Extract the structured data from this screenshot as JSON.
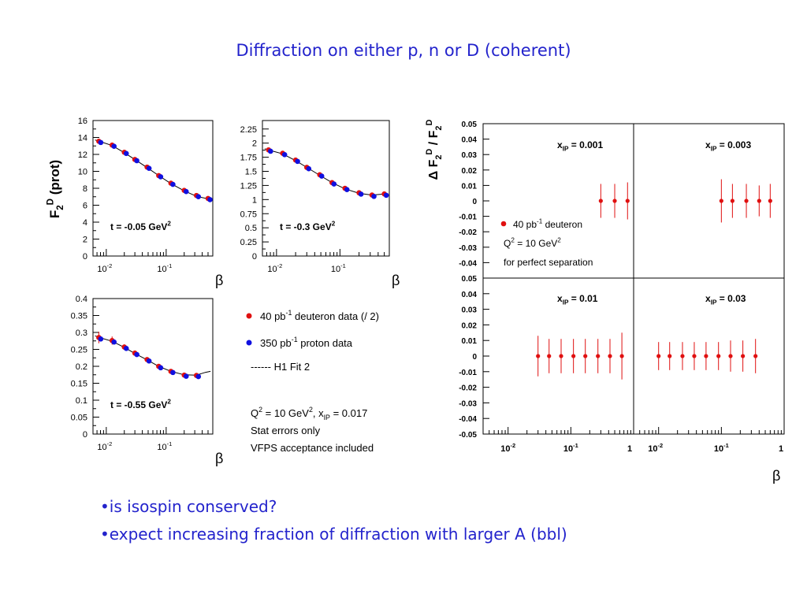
{
  "slide": {
    "title": "Diffraction on either p, n or D (coherent)",
    "bullets": [
      "•is isospin conserved?",
      "•expect increasing fraction of diffraction with larger A (bbl)"
    ]
  },
  "legend": {
    "deuteron": "40 pb-1 deuteron data (/ 2)",
    "proton": "350 pb-1 proton data",
    "fit": "------ H1 Fit 2",
    "conditions": "Q2 = 10 GeV2, xIP = 0.017",
    "stat": "Stat errors only",
    "vfps": "VFPS acceptance included"
  },
  "colors": {
    "text": "#2323cc",
    "deuteron": "#e01010",
    "proton": "#1010e0",
    "fit": "#000000"
  },
  "chart_data": [
    {
      "type": "scatter",
      "panel": "top-left",
      "ylabel": "F2D (prot)",
      "xlabel": "β",
      "xscale": "log",
      "annotation": "t = -0.05 GeV2",
      "ylim": [
        0,
        16
      ],
      "yticks": [
        0,
        2,
        4,
        6,
        8,
        10,
        12,
        14,
        16
      ],
      "x": [
        0.0075,
        0.0125,
        0.02,
        0.03,
        0.048,
        0.075,
        0.12,
        0.2,
        0.32,
        0.5
      ],
      "series": [
        {
          "name": "40 pb-1 deuteron data (/ 2)",
          "values": [
            13.55,
            13.1,
            12.25,
            11.4,
            10.5,
            9.5,
            8.6,
            7.75,
            7.15,
            6.8
          ]
        },
        {
          "name": "350 pb-1 proton data",
          "values": [
            13.5,
            13.05,
            12.2,
            11.35,
            10.45,
            9.45,
            8.55,
            7.7,
            7.1,
            6.75
          ]
        },
        {
          "name": "H1 Fit 2",
          "line": [
            [
              0.0065,
              13.7
            ],
            [
              0.008,
              13.5
            ],
            [
              0.0125,
              13.05
            ],
            [
              0.02,
              12.2
            ],
            [
              0.03,
              11.4
            ],
            [
              0.048,
              10.45
            ],
            [
              0.075,
              9.5
            ],
            [
              0.12,
              8.55
            ],
            [
              0.2,
              7.7
            ],
            [
              0.32,
              7.05
            ],
            [
              0.5,
              6.75
            ],
            [
              0.55,
              6.7
            ]
          ]
        }
      ]
    },
    {
      "type": "scatter",
      "panel": "top-right",
      "xlabel": "β",
      "xscale": "log",
      "annotation": "t = -0.3 GeV2",
      "ylim": [
        0,
        2.4
      ],
      "yticks": [
        0,
        0.25,
        0.5,
        0.75,
        1,
        1.25,
        1.5,
        1.75,
        2,
        2.25
      ],
      "x": [
        0.0075,
        0.0125,
        0.02,
        0.03,
        0.048,
        0.075,
        0.12,
        0.2,
        0.32,
        0.5
      ],
      "series": [
        {
          "name": "40 pb-1 deuteron data (/ 2)",
          "values": [
            1.88,
            1.82,
            1.7,
            1.57,
            1.44,
            1.3,
            1.2,
            1.12,
            1.08,
            1.1
          ]
        },
        {
          "name": "350 pb-1 proton data",
          "values": [
            1.87,
            1.81,
            1.69,
            1.56,
            1.43,
            1.29,
            1.19,
            1.11,
            1.07,
            1.09
          ]
        },
        {
          "name": "H1 Fit 2",
          "line": [
            [
              0.0065,
              1.9
            ],
            [
              0.008,
              1.87
            ],
            [
              0.0125,
              1.81
            ],
            [
              0.02,
              1.69
            ],
            [
              0.03,
              1.57
            ],
            [
              0.048,
              1.43
            ],
            [
              0.075,
              1.3
            ],
            [
              0.12,
              1.19
            ],
            [
              0.2,
              1.11
            ],
            [
              0.32,
              1.08
            ],
            [
              0.5,
              1.1
            ],
            [
              0.55,
              1.11
            ]
          ]
        }
      ]
    },
    {
      "type": "scatter",
      "panel": "bottom-left",
      "xlabel": "β",
      "xscale": "log",
      "annotation": "t = -0.55 GeV2",
      "ylim": [
        0,
        0.4
      ],
      "yticks": [
        0,
        0.05,
        0.1,
        0.15,
        0.2,
        0.25,
        0.3,
        0.35,
        0.4
      ],
      "x": [
        0.0075,
        0.0125,
        0.02,
        0.03,
        0.048,
        0.075,
        0.12,
        0.2,
        0.32
      ],
      "series": [
        {
          "name": "40 pb-1 deuteron data (/ 2)",
          "values": [
            0.285,
            0.276,
            0.257,
            0.239,
            0.22,
            0.2,
            0.185,
            0.174,
            0.173
          ],
          "err": [
            0.017,
            0.012,
            0.008,
            0.007,
            0.006,
            0.006,
            0.005,
            0.005,
            0.005
          ]
        },
        {
          "name": "350 pb-1 proton data",
          "values": [
            0.283,
            0.274,
            0.255,
            0.237,
            0.218,
            0.198,
            0.184,
            0.173,
            0.172
          ]
        },
        {
          "name": "H1 Fit 2",
          "line": [
            [
              0.0065,
              0.29
            ],
            [
              0.008,
              0.284
            ],
            [
              0.0125,
              0.274
            ],
            [
              0.02,
              0.256
            ],
            [
              0.03,
              0.238
            ],
            [
              0.048,
              0.219
            ],
            [
              0.075,
              0.2
            ],
            [
              0.12,
              0.185
            ],
            [
              0.2,
              0.175
            ],
            [
              0.32,
              0.174
            ],
            [
              0.45,
              0.182
            ],
            [
              0.55,
              0.185
            ]
          ]
        }
      ]
    },
    {
      "type": "scatter",
      "panel": "ratio-grid",
      "ylabel": "Δ F2D / F2D",
      "xlabel": "β",
      "xscale": "log",
      "xticklabels": [
        "10-2",
        "10-1",
        "1"
      ],
      "ylim": [
        -0.05,
        0.05
      ],
      "yticks": [
        -0.05,
        -0.04,
        -0.03,
        -0.02,
        -0.01,
        0,
        0.01,
        0.02,
        0.03,
        0.04,
        0.05
      ],
      "legend": {
        "marker": "40 pb-1 deuteron",
        "q2": "Q2 = 10 GeV2",
        "note": "for perfect separation"
      },
      "subpanels": [
        {
          "label": "xIP = 0.001",
          "x": [
            0.3,
            0.5,
            0.8
          ],
          "values": [
            0,
            0,
            0
          ],
          "err": [
            0.011,
            0.011,
            0.012
          ]
        },
        {
          "label": "xIP = 0.003",
          "x": [
            0.1,
            0.15,
            0.25,
            0.4,
            0.6
          ],
          "values": [
            0,
            0,
            0,
            0,
            0
          ],
          "err": [
            0.014,
            0.011,
            0.011,
            0.01,
            0.011
          ]
        },
        {
          "label": "xIP = 0.01",
          "x": [
            0.03,
            0.045,
            0.07,
            0.11,
            0.17,
            0.27,
            0.42,
            0.65
          ],
          "values": [
            0,
            0,
            0,
            0,
            0,
            0,
            0,
            0
          ],
          "err": [
            0.013,
            0.011,
            0.011,
            0.011,
            0.011,
            0.011,
            0.011,
            0.015
          ]
        },
        {
          "label": "xIP = 0.03",
          "x": [
            0.01,
            0.015,
            0.024,
            0.037,
            0.057,
            0.09,
            0.14,
            0.22,
            0.35
          ],
          "values": [
            0,
            0,
            0,
            0,
            0,
            0,
            0,
            0,
            0
          ],
          "err": [
            0.009,
            0.009,
            0.009,
            0.009,
            0.009,
            0.009,
            0.01,
            0.01,
            0.011
          ]
        }
      ]
    }
  ]
}
